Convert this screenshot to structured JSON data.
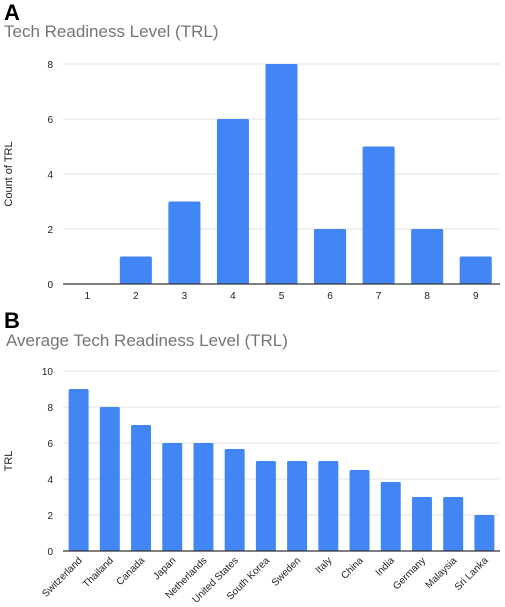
{
  "panels": [
    {
      "letter": "A",
      "title": "Tech Readiness Level (TRL)"
    },
    {
      "letter": "B",
      "title": "Average Tech Readiness Level (TRL)"
    }
  ],
  "colors": {
    "bar": "#4285F4",
    "grid": "#e0e0e0",
    "axis": "#333333",
    "title": "#757575"
  },
  "chart_data": [
    {
      "type": "bar",
      "title": "Tech Readiness Level (TRL)",
      "xlabel": "",
      "ylabel": "Count of TRL",
      "categories": [
        "1",
        "2",
        "3",
        "4",
        "5",
        "6",
        "7",
        "8",
        "9"
      ],
      "values": [
        0,
        1,
        3,
        6,
        8,
        2,
        5,
        2,
        1
      ],
      "ylim": [
        0,
        8
      ],
      "yticks": [
        0,
        2,
        4,
        6,
        8
      ],
      "grid": true
    },
    {
      "type": "bar",
      "title": "Average Tech Readiness Level (TRL)",
      "xlabel": "",
      "ylabel": "TRL",
      "categories": [
        "Switzerland",
        "Thailand",
        "Canada",
        "Japan",
        "Netherlands",
        "United States",
        "South Korea",
        "Sweden",
        "Italy",
        "China",
        "India",
        "Germany",
        "Malaysia",
        "Sri Lanka"
      ],
      "values": [
        9,
        8,
        7,
        6,
        6,
        5.67,
        5,
        5,
        5,
        4.5,
        3.83,
        3,
        3,
        2
      ],
      "ylim": [
        0,
        10
      ],
      "yticks": [
        0,
        2,
        4,
        6,
        8,
        10
      ],
      "grid": true
    }
  ]
}
